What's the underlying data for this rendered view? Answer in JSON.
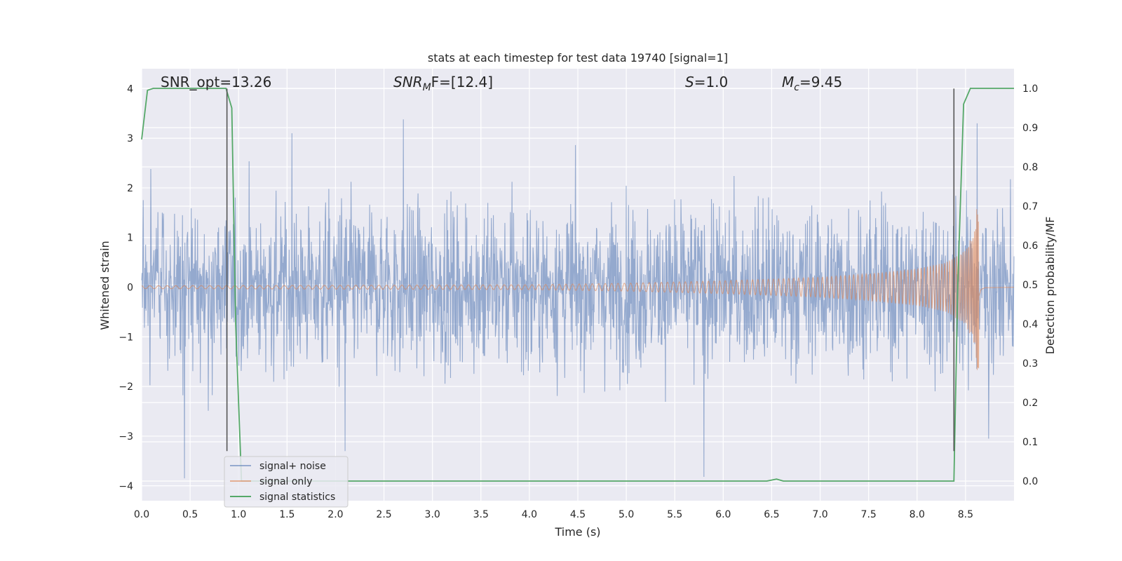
{
  "chart_data": {
    "type": "line",
    "title": "stats at each timestep for test data 19740 [signal=1]",
    "xlabel": "Time (s)",
    "ylabel": "Whitened strain",
    "ylabel_right": "Detection probability/MF",
    "xlim": [
      0,
      9.0
    ],
    "ylim": [
      -4.3,
      4.4
    ],
    "ylim_right": [
      -0.05,
      1.05
    ],
    "x_ticks": [
      "0.0",
      "0.5",
      "1.0",
      "1.5",
      "2.0",
      "2.5",
      "3.0",
      "3.5",
      "4.0",
      "4.5",
      "5.0",
      "5.5",
      "6.0",
      "6.5",
      "7.0",
      "7.5",
      "8.0",
      "8.5"
    ],
    "x_tick_values": [
      0.0,
      0.5,
      1.0,
      1.5,
      2.0,
      2.5,
      3.0,
      3.5,
      4.0,
      4.5,
      5.0,
      5.5,
      6.0,
      6.5,
      7.0,
      7.5,
      8.0,
      8.5
    ],
    "y_ticks": [
      "4",
      "3",
      "2",
      "1",
      "0",
      "−1",
      "−2",
      "−3",
      "−4"
    ],
    "y_tick_values": [
      4,
      3,
      2,
      1,
      0,
      -1,
      -2,
      -3,
      -4
    ],
    "y2_ticks": [
      "1.0",
      "0.9",
      "0.8",
      "0.7",
      "0.6",
      "0.5",
      "0.4",
      "0.3",
      "0.2",
      "0.1",
      "0.0"
    ],
    "y2_tick_values": [
      1.0,
      0.9,
      0.8,
      0.7,
      0.6,
      0.5,
      0.4,
      0.3,
      0.2,
      0.1,
      0.0
    ],
    "grid": true,
    "legend_position": "lower-left",
    "annotations": [
      {
        "text": "SNR_opt=13.26"
      },
      {
        "math": true,
        "base": "SNR",
        "sub": "M",
        "after": "F=[12.4]"
      },
      {
        "math": true,
        "base": "S",
        "sub": "",
        "after": "=1.0"
      },
      {
        "math": true,
        "base": "M",
        "sub": "c",
        "after": "=9.45"
      }
    ],
    "series": [
      {
        "name": "signal+ noise",
        "color": "#4c72b0",
        "axis": "left",
        "description": "white gaussian noise, std ~1.1, peaks within -3.9..3.4",
        "envelope": {
          "x": [
            0,
            9.0
          ],
          "upper": [
            2.4,
            2.4
          ],
          "lower": [
            -2.4,
            -2.4
          ]
        },
        "peaks": [
          {
            "x": 0.44,
            "y": -3.85
          },
          {
            "x": 2.7,
            "y": 3.38
          },
          {
            "x": 5.8,
            "y": -3.82
          },
          {
            "x": 8.62,
            "y": 3.3
          },
          {
            "x": 8.74,
            "y": -3.05
          },
          {
            "x": 1.55,
            "y": 3.1
          },
          {
            "x": 2.1,
            "y": -3.3
          }
        ]
      },
      {
        "name": "signal only",
        "color": "#dd8452",
        "axis": "left",
        "description": "chirp; amplitude grows toward merger near t = 8.63 s",
        "envelope": {
          "x": [
            0,
            4.0,
            5.0,
            6.0,
            7.0,
            7.5,
            8.0,
            8.3,
            8.5,
            8.6,
            8.63,
            8.66,
            8.7,
            9.0
          ],
          "amplitude": [
            0.03,
            0.05,
            0.08,
            0.13,
            0.2,
            0.27,
            0.37,
            0.5,
            0.75,
            1.2,
            1.95,
            0.4,
            0.08,
            0.02
          ]
        }
      },
      {
        "name": "signal statistics",
        "color": "#55a868",
        "axis": "right",
        "x": [
          0.0,
          0.06,
          0.12,
          0.3,
          0.5,
          0.7,
          0.87,
          0.93,
          0.97,
          1.03,
          1.2,
          2.0,
          3.0,
          4.0,
          5.0,
          6.0,
          6.45,
          6.55,
          6.62,
          7.0,
          8.0,
          8.38,
          8.42,
          8.48,
          8.55,
          9.0
        ],
        "y": [
          0.87,
          0.995,
          1.0,
          1.0,
          1.0,
          1.0,
          1.0,
          0.95,
          0.4,
          0.0,
          0.0,
          0.0,
          0.0,
          0.0,
          0.0,
          0.0,
          0.0,
          0.005,
          0.0,
          0.0,
          0.0,
          0.0,
          0.5,
          0.96,
          1.0,
          1.0
        ]
      }
    ],
    "vertical_lines": [
      {
        "x": 0.88,
        "color": "#555555"
      },
      {
        "x": 8.38,
        "color": "#555555"
      }
    ]
  }
}
